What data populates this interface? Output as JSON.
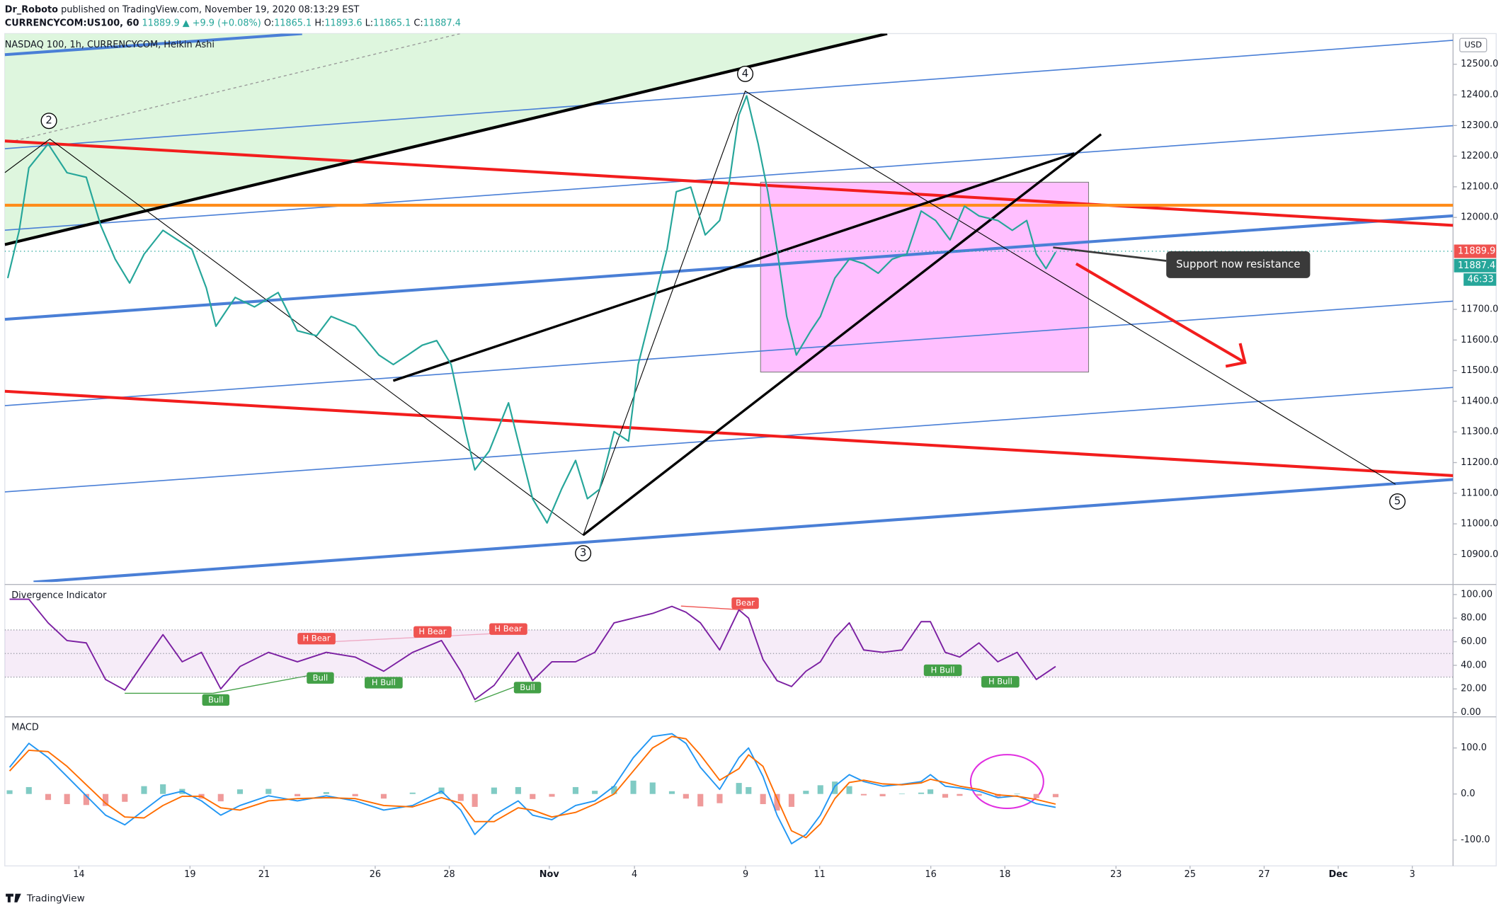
{
  "header": {
    "author": "Dr_Roboto",
    "published": "published on TradingView.com, November 19, 2020 08:13:29 EST",
    "symbol": "CURRENCYCOM:US100, 60",
    "last": "11889.9",
    "change": "▲ +9.9 (+0.08%)",
    "ohlc": [
      {
        "key": "O:",
        "value": "11865.1"
      },
      {
        "key": "H:",
        "value": "11893.6"
      },
      {
        "key": "L:",
        "value": "11865.1"
      },
      {
        "key": "C:",
        "value": "11887.4"
      }
    ]
  },
  "chart_data": [
    {
      "type": "line",
      "title": "NASDAQ 100, 1h, CURRENCYCOM, Heikin Ashi",
      "currency": "USD",
      "price_labels": [
        "11889.9",
        "11887.4",
        "46:33"
      ],
      "waves": [
        "2",
        "3",
        "4",
        "5"
      ],
      "callout": "Support now resistance",
      "grid": false,
      "xlim": [
        0,
        39.1
      ],
      "ylim": [
        10810,
        12600
      ],
      "xticks": [
        {
          "value": 2,
          "label": "14"
        },
        {
          "value": 5,
          "label": "19"
        },
        {
          "value": 7,
          "label": "21"
        },
        {
          "value": 10,
          "label": "26"
        },
        {
          "value": 12,
          "label": "28"
        },
        {
          "value": 14.7,
          "label": "Nov"
        },
        {
          "value": 17,
          "label": "4"
        },
        {
          "value": 20,
          "label": "9"
        },
        {
          "value": 22,
          "label": "11"
        },
        {
          "value": 25,
          "label": "16"
        },
        {
          "value": 27,
          "label": "18"
        },
        {
          "value": 30,
          "label": "23"
        },
        {
          "value": 32,
          "label": "25"
        },
        {
          "value": 34,
          "label": "27"
        },
        {
          "value": 36,
          "label": "Dec"
        },
        {
          "value": 38,
          "label": "3"
        }
      ],
      "yticks": [
        {
          "value": 10900,
          "label": "10900.0"
        },
        {
          "value": 11000,
          "label": "11000.0"
        },
        {
          "value": 11100,
          "label": "11100.0"
        },
        {
          "value": 11200,
          "label": "11200.0"
        },
        {
          "value": 11300,
          "label": "11300.0"
        },
        {
          "value": 11400,
          "label": "11400.0"
        },
        {
          "value": 11500,
          "label": "11500.0"
        },
        {
          "value": 11600,
          "label": "11600.0"
        },
        {
          "value": 11700,
          "label": "11700.0"
        },
        {
          "value": 12000,
          "label": "12000.0"
        },
        {
          "value": 12100,
          "label": "12100.0"
        },
        {
          "value": 12200,
          "label": "12200.0"
        },
        {
          "value": 12300,
          "label": "12300.0"
        },
        {
          "value": 12400,
          "label": "12400.0"
        },
        {
          "value": 12500,
          "label": "12500.0"
        }
      ],
      "x": [
        0.08,
        0.39,
        0.65,
        1.17,
        1.68,
        2.2,
        2.59,
        2.98,
        3.37,
        3.76,
        4.27,
        4.66,
        5.05,
        5.44,
        5.7,
        6.22,
        6.74,
        7.38,
        7.9,
        8.42,
        8.81,
        9.46,
        10.1,
        10.49,
        10.88,
        11.27,
        11.66,
        12.05,
        12.44,
        12.69,
        13.08,
        13.6,
        13.99,
        14.25,
        14.64,
        15.03,
        15.41,
        15.73,
        16.06,
        16.45,
        16.84,
        17.1,
        17.49,
        17.88,
        18.13,
        18.52,
        18.91,
        19.3,
        19.56,
        19.82,
        20.03,
        20.34,
        20.6,
        20.85,
        21.11,
        21.37,
        21.76,
        22.02,
        22.41,
        22.8,
        23.19,
        23.58,
        23.96,
        24.35,
        24.74,
        25.13,
        25.52,
        25.91,
        26.3,
        26.81,
        27.2,
        27.59,
        27.85,
        28.11,
        28.37
      ],
      "series": [
        {
          "color": "#26a69a",
          "values": [
            11802,
            11958,
            12162,
            12240,
            12146,
            12131,
            11974,
            11864,
            11786,
            11880,
            11958,
            11927,
            11896,
            11770,
            11645,
            11739,
            11708,
            11755,
            11630,
            11614,
            11677,
            11645,
            11551,
            11520,
            11551,
            11583,
            11598,
            11520,
            11301,
            11176,
            11238,
            11395,
            11207,
            11082,
            11003,
            11113,
            11207,
            11082,
            11113,
            11301,
            11270,
            11520,
            11708,
            11896,
            12084,
            12099,
            11943,
            11990,
            12115,
            12334,
            12397,
            12240,
            12084,
            11896,
            11677,
            11551,
            11630,
            11677,
            11802,
            11864,
            11849,
            11818,
            11864,
            11880,
            12021,
            11990,
            11927,
            12037,
            12005,
            11990,
            11958,
            11990,
            11880,
            11833,
            11887
          ]
        }
      ]
    },
    {
      "type": "line",
      "title": "Divergence Indicator",
      "grid": false,
      "xlim": [
        0,
        39.1
      ],
      "ylim": [
        -1.6,
        106.5
      ],
      "band": [
        30,
        70
      ],
      "midline": 50,
      "band_color": "#9c27b0",
      "signals": [
        "H Bear",
        "H Bear",
        "H Bear",
        "Bear",
        "Bull",
        "Bull",
        "H Bull",
        "Bull",
        "H Bull",
        "H Bull"
      ],
      "yticks": [
        {
          "value": 0,
          "label": "0.00"
        },
        {
          "value": 20,
          "label": "20.00"
        },
        {
          "value": 40,
          "label": "40.00"
        },
        {
          "value": 60,
          "label": "60.00"
        },
        {
          "value": 80,
          "label": "80.00"
        },
        {
          "value": 100,
          "label": "100.00"
        }
      ],
      "x": [
        0.13,
        0.65,
        1.17,
        1.68,
        2.2,
        2.72,
        3.24,
        3.76,
        4.27,
        4.79,
        5.31,
        5.83,
        6.35,
        7.12,
        7.9,
        8.68,
        9.46,
        10.23,
        11.01,
        11.79,
        12.31,
        12.69,
        13.21,
        13.86,
        14.25,
        14.77,
        15.41,
        15.93,
        16.45,
        16.97,
        17.49,
        18.01,
        18.39,
        18.78,
        19.3,
        19.82,
        20.08,
        20.47,
        20.85,
        21.24,
        21.63,
        22.02,
        22.41,
        22.8,
        23.19,
        23.7,
        24.22,
        24.74,
        24.99,
        25.39,
        25.78,
        26.3,
        26.81,
        27.33,
        27.85,
        28.37
      ],
      "series": [
        {
          "color": "#7b1fa2",
          "values": [
            96,
            96,
            76,
            61,
            59,
            28,
            19,
            43,
            66,
            43,
            51,
            20,
            39,
            51,
            43,
            51,
            47,
            35,
            51,
            61,
            35,
            11,
            23,
            51,
            27,
            43,
            43,
            51,
            76,
            80,
            84,
            90,
            85,
            76,
            53,
            87,
            80,
            45,
            27,
            22,
            35,
            43,
            63,
            76,
            53,
            51,
            53,
            77,
            77,
            51,
            47,
            59,
            43,
            51,
            28,
            39
          ]
        }
      ]
    },
    {
      "type": "line",
      "title": "MACD",
      "grid": false,
      "xlim": [
        0,
        39.1
      ],
      "ylim": [
        -150,
        162.5
      ],
      "yticks": [
        {
          "value": -100,
          "label": "-100.0"
        },
        {
          "value": 0,
          "label": "0.0"
        },
        {
          "value": 100,
          "label": "100.0"
        }
      ],
      "x": [
        0.13,
        0.65,
        1.17,
        1.68,
        2.2,
        2.72,
        3.24,
        3.76,
        4.27,
        4.79,
        5.31,
        5.83,
        6.35,
        7.12,
        7.9,
        8.68,
        9.46,
        10.23,
        11.01,
        11.79,
        12.31,
        12.69,
        13.21,
        13.86,
        14.25,
        14.77,
        15.41,
        15.93,
        16.45,
        16.97,
        17.49,
        18.01,
        18.39,
        18.78,
        19.3,
        19.82,
        20.08,
        20.47,
        20.85,
        21.24,
        21.63,
        22.02,
        22.41,
        22.8,
        23.19,
        23.7,
        24.22,
        24.74,
        24.99,
        25.39,
        25.78,
        26.3,
        26.81,
        27.33,
        27.85,
        28.37
      ],
      "series": [
        {
          "style": "histogram",
          "up_color": "#80cbc4",
          "down_color": "#ef9a9a",
          "values": [
            8,
            15,
            -13,
            -22,
            -24,
            -26,
            -17,
            17,
            21,
            11,
            -10,
            -16,
            10,
            11,
            -5,
            4,
            -5,
            -10,
            3,
            14,
            -15,
            -28,
            14,
            15,
            -11,
            -6,
            15,
            7,
            17,
            29,
            25,
            6,
            -10,
            -27,
            -20,
            24,
            15,
            -22,
            -36,
            -28,
            7,
            19,
            27,
            17,
            -3,
            -5,
            1,
            3,
            10,
            -8,
            -4,
            -4,
            -6,
            1,
            -9,
            -7
          ]
        },
        {
          "color": "#2196f3",
          "values": [
            58,
            110,
            79,
            38,
            -4,
            -46,
            -67,
            -35,
            -4,
            6,
            -15,
            -46,
            -25,
            -4,
            -15,
            -4,
            -15,
            -35,
            -25,
            6,
            -35,
            -88,
            -46,
            -15,
            -46,
            -56,
            -25,
            -15,
            17,
            79,
            125,
            131,
            110,
            58,
            10,
            79,
            100,
            38,
            -46,
            -108,
            -88,
            -46,
            17,
            42,
            27,
            17,
            21,
            27,
            42,
            17,
            13,
            6,
            -8,
            -4,
            -21,
            -29
          ]
        },
        {
          "color": "#ff6d00",
          "values": [
            50,
            95,
            92,
            60,
            20,
            -20,
            -50,
            -52,
            -25,
            -5,
            -5,
            -30,
            -35,
            -15,
            -10,
            -8,
            -10,
            -25,
            -28,
            -8,
            -20,
            -60,
            -60,
            -30,
            -35,
            -50,
            -40,
            -22,
            0,
            50,
            100,
            125,
            120,
            85,
            30,
            55,
            85,
            60,
            -10,
            -80,
            -95,
            -65,
            -10,
            25,
            30,
            22,
            20,
            24,
            32,
            25,
            17,
            10,
            -2,
            -5,
            -12,
            -22
          ]
        }
      ]
    }
  ],
  "footer": "TradingView"
}
